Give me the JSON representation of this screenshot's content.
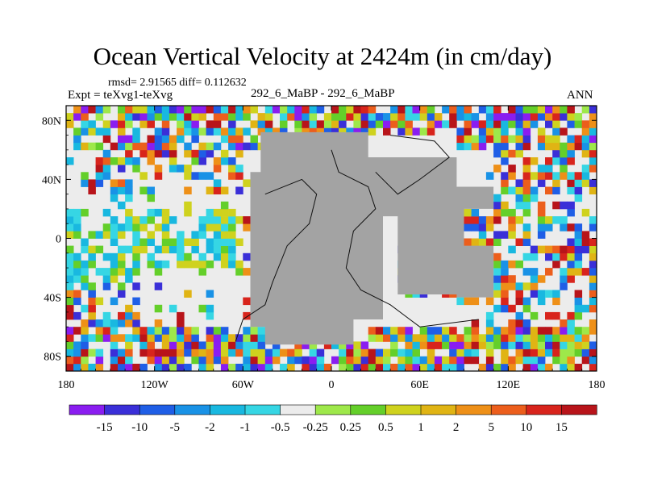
{
  "chart_data": {
    "type": "heatmap",
    "title": "Ocean Vertical Velocity at 2424m (in cm/day)",
    "stats": "rmsd= 2.91565  diff= 0.112632",
    "experiment": "Expt = teXvg1-teXvg",
    "subtitle": "292_6_MaBP - 292_6_MaBP",
    "season": "ANN",
    "xlim": [
      -180,
      180
    ],
    "ylim": [
      -90,
      90
    ],
    "x_ticks": [
      {
        "value": -180,
        "label": "180"
      },
      {
        "value": -120,
        "label": "120W"
      },
      {
        "value": -60,
        "label": "60W"
      },
      {
        "value": 0,
        "label": "0"
      },
      {
        "value": 60,
        "label": "60E"
      },
      {
        "value": 120,
        "label": "120E"
      },
      {
        "value": 180,
        "label": "180"
      }
    ],
    "y_ticks": [
      {
        "value": 80,
        "label": "80N"
      },
      {
        "value": 40,
        "label": "40N"
      },
      {
        "value": 0,
        "label": "0"
      },
      {
        "value": -40,
        "label": "40S"
      },
      {
        "value": -80,
        "label": "80S"
      }
    ],
    "colorbar": {
      "levels": [
        "-15",
        "-10",
        "-5",
        "-2",
        "-1",
        "-0.5",
        "-0.25",
        "0.25",
        "0.5",
        "1",
        "2",
        "5",
        "10",
        "15"
      ],
      "colors": [
        "#8a1df0",
        "#3a2fd8",
        "#1f5ee6",
        "#1992e6",
        "#19b8e0",
        "#36d6e4",
        "#ececec",
        "#9ee84a",
        "#64cf2a",
        "#cfd21e",
        "#e0b414",
        "#ee9018",
        "#ec5e1c",
        "#d8241c",
        "#b8141a"
      ]
    },
    "colors": {
      "land": "#a3a3a3",
      "coast": "#111111",
      "neutral": "#ececec"
    }
  }
}
